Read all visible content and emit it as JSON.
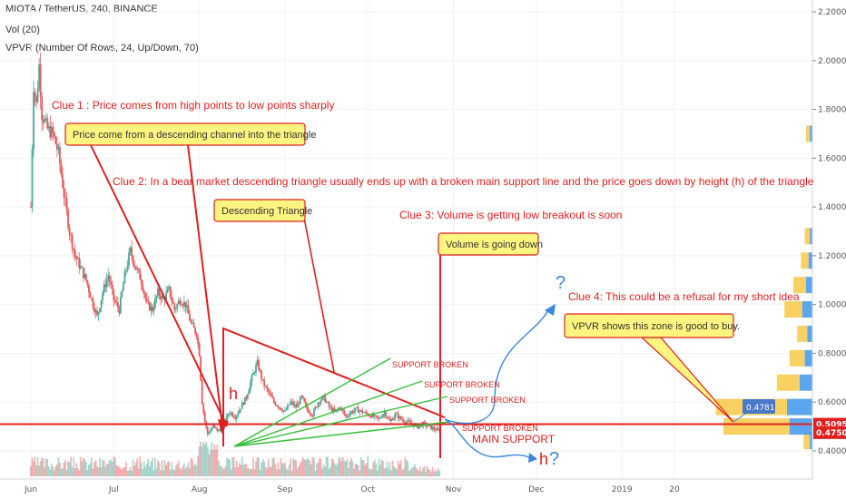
{
  "header": {
    "title": "MIOTA / TetherUS, 240, BINANCE",
    "vol": "Vol (20)",
    "vpvr": "VPVR (Number Of Rows, 24, Up/Down, 70)"
  },
  "chart_data": {
    "type": "candlestick",
    "symbol": "MIOTA / TetherUS",
    "interval": "240",
    "exchange": "BINANCE",
    "y_axis": {
      "ticks": [
        "2.2000",
        "2.0000",
        "1.8000",
        "1.6000",
        "1.4000",
        "1.2000",
        "1.0000",
        "0.8000",
        "0.6000",
        "0.4000"
      ],
      "ylim": [
        0.35,
        2.2
      ]
    },
    "x_axis": {
      "ticks": [
        "Jun",
        "Jul",
        "Aug",
        "Sep",
        "Oct",
        "Nov",
        "Dec",
        "2019",
        "20"
      ],
      "tick_days": [
        0,
        30,
        61,
        92,
        122,
        153,
        183,
        214,
        233
      ],
      "xlim_days": [
        -3,
        262
      ]
    },
    "price_labels": [
      {
        "text": "0.5095",
        "value": 0.5095,
        "color": "#e0201e"
      },
      {
        "text": "0.4750",
        "value": 0.475,
        "color": "#e0201e"
      }
    ],
    "cursor_label": {
      "text": "0.4781",
      "value": 0.4781
    },
    "main_support": {
      "value": 0.5095,
      "label": "MAIN SUPPORT"
    },
    "price_path": [
      [
        0,
        1.4
      ],
      [
        1,
        1.9
      ],
      [
        2,
        1.82
      ],
      [
        3,
        1.98
      ],
      [
        4,
        1.78
      ],
      [
        6,
        1.72
      ],
      [
        8,
        1.7
      ],
      [
        10,
        1.62
      ],
      [
        12,
        1.45
      ],
      [
        14,
        1.3
      ],
      [
        16,
        1.2
      ],
      [
        18,
        1.15
      ],
      [
        20,
        1.1
      ],
      [
        22,
        1.02
      ],
      [
        24,
        0.95
      ],
      [
        26,
        1.05
      ],
      [
        28,
        1.12
      ],
      [
        30,
        1.02
      ],
      [
        32,
        0.98
      ],
      [
        34,
        1.12
      ],
      [
        36,
        1.22
      ],
      [
        38,
        1.15
      ],
      [
        40,
        1.1
      ],
      [
        42,
        1.0
      ],
      [
        44,
        0.98
      ],
      [
        46,
        1.05
      ],
      [
        48,
        1.02
      ],
      [
        50,
        1.06
      ],
      [
        52,
        0.98
      ],
      [
        54,
        1.02
      ],
      [
        56,
        1.0
      ],
      [
        58,
        0.92
      ],
      [
        60,
        0.88
      ],
      [
        61,
        0.8
      ],
      [
        62,
        0.6
      ],
      [
        63,
        0.52
      ],
      [
        64,
        0.47
      ],
      [
        66,
        0.5
      ],
      [
        68,
        0.48
      ],
      [
        70,
        0.52
      ],
      [
        72,
        0.56
      ],
      [
        74,
        0.54
      ],
      [
        76,
        0.58
      ],
      [
        78,
        0.62
      ],
      [
        80,
        0.7
      ],
      [
        82,
        0.76
      ],
      [
        84,
        0.68
      ],
      [
        86,
        0.64
      ],
      [
        88,
        0.6
      ],
      [
        90,
        0.58
      ],
      [
        92,
        0.56
      ],
      [
        94,
        0.6
      ],
      [
        96,
        0.58
      ],
      [
        98,
        0.62
      ],
      [
        100,
        0.57
      ],
      [
        102,
        0.55
      ],
      [
        104,
        0.6
      ],
      [
        106,
        0.62
      ],
      [
        108,
        0.58
      ],
      [
        110,
        0.56
      ],
      [
        112,
        0.58
      ],
      [
        114,
        0.54
      ],
      [
        116,
        0.56
      ],
      [
        118,
        0.57
      ],
      [
        120,
        0.56
      ],
      [
        122,
        0.55
      ],
      [
        124,
        0.54
      ],
      [
        126,
        0.53
      ],
      [
        128,
        0.56
      ],
      [
        130,
        0.52
      ],
      [
        132,
        0.55
      ],
      [
        134,
        0.53
      ],
      [
        136,
        0.52
      ],
      [
        138,
        0.51
      ],
      [
        140,
        0.5
      ],
      [
        142,
        0.51
      ],
      [
        144,
        0.5
      ],
      [
        146,
        0.49
      ],
      [
        148,
        0.48
      ]
    ],
    "vpvr_bars": [
      {
        "price": 0.44,
        "up": 0.05,
        "down": 0.02
      },
      {
        "price": 0.5,
        "up": 0.52,
        "down": 0.18
      },
      {
        "price": 0.58,
        "up": 0.56,
        "down": 0.2
      },
      {
        "price": 0.68,
        "up": 0.18,
        "down": 0.1
      },
      {
        "price": 0.78,
        "up": 0.12,
        "down": 0.06
      },
      {
        "price": 0.88,
        "up": 0.08,
        "down": 0.04
      },
      {
        "price": 0.98,
        "up": 0.14,
        "down": 0.08
      },
      {
        "price": 1.08,
        "up": 0.1,
        "down": 0.05
      },
      {
        "price": 1.18,
        "up": 0.06,
        "down": 0.03
      },
      {
        "price": 1.28,
        "up": 0.04,
        "down": 0.02
      },
      {
        "price": 1.7,
        "up": 0.03,
        "down": 0.02
      }
    ],
    "annotations": {
      "clue1": "Clue 1 : Price comes from high points to low points sharply",
      "clue2": "Clue 2: In a bear market descending triangle usually ends up with a broken main support line and the price goes down by height (h) of the triangle",
      "clue3": "Clue 3: Volume is getting low breakout is soon",
      "clue4": "Clue 4: This could be a refusal for my short idea",
      "callout_channel": "Price come from a descending channel into the triangle",
      "callout_triangle": "Descending Triangle",
      "callout_volume": "Volume is going down",
      "callout_vpvr": "VPVR shows this zone is good to buy.",
      "support_broken": [
        "SUPPORT BROKEN",
        "SUPPORT BROKEN",
        "SUPPORT BROKEN",
        "SUPPORT BROKEN"
      ],
      "main_support": "MAIN SUPPORT",
      "h_left": "h",
      "h_right": "h",
      "question": "?"
    }
  }
}
